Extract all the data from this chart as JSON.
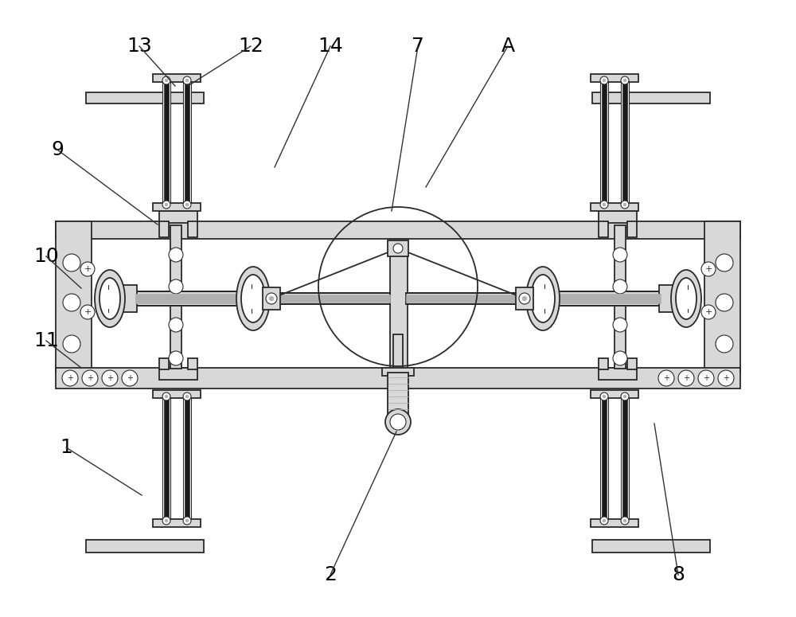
{
  "bg_color": "#ffffff",
  "line_color": "#2a2a2a",
  "gray1": "#d8d8d8",
  "gray2": "#b0b0b0",
  "dark": "#1a1a1a",
  "lw1": 1.3,
  "lw2": 0.8,
  "figsize": [
    10,
    7.75
  ],
  "dpi": 100,
  "labels_data": [
    [
      "13",
      175,
      58,
      220,
      108
    ],
    [
      "12",
      315,
      58,
      236,
      108
    ],
    [
      "14",
      415,
      58,
      345,
      210
    ],
    [
      "7",
      525,
      58,
      492,
      265
    ],
    [
      "A",
      638,
      58,
      535,
      235
    ],
    [
      "9",
      72,
      188,
      198,
      282
    ],
    [
      "10",
      58,
      322,
      102,
      362
    ],
    [
      "11",
      58,
      428,
      102,
      462
    ],
    [
      "1",
      83,
      562,
      178,
      622
    ],
    [
      "2",
      415,
      722,
      498,
      542
    ],
    [
      "8",
      852,
      722,
      822,
      532
    ]
  ],
  "label_fontsize": 18
}
